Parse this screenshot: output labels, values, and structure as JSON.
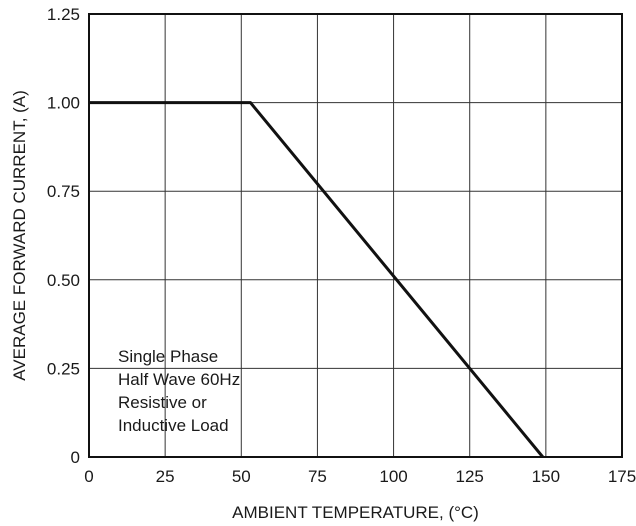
{
  "chart_data": {
    "type": "line",
    "xlabel": "AMBIENT TEMPERATURE, (°C)",
    "ylabel": "AVERAGE FORWARD CURRENT, (A)",
    "xlim": [
      0,
      175
    ],
    "ylim": [
      0,
      1.25
    ],
    "x_ticks": [
      0,
      25,
      50,
      75,
      100,
      125,
      150,
      175
    ],
    "x_tick_labels": [
      "0",
      "25",
      "50",
      "75",
      "100",
      "125",
      "150",
      "175"
    ],
    "y_ticks": [
      0,
      0.25,
      0.5,
      0.75,
      1.0,
      1.25
    ],
    "y_tick_labels": [
      "0",
      "0.25",
      "0.50",
      "0.75",
      "1.00",
      "1.25"
    ],
    "grid": true,
    "series": [
      {
        "x": [
          0,
          53,
          149
        ],
        "y": [
          1.0,
          1.0,
          0
        ]
      }
    ],
    "annotation_lines": [
      "Single Phase",
      "Half Wave 60Hz",
      "Resistive or",
      "Inductive Load"
    ],
    "colors": {
      "line": "#111111",
      "grid": "#333333",
      "frame": "#111111",
      "background": "#ffffff"
    }
  }
}
